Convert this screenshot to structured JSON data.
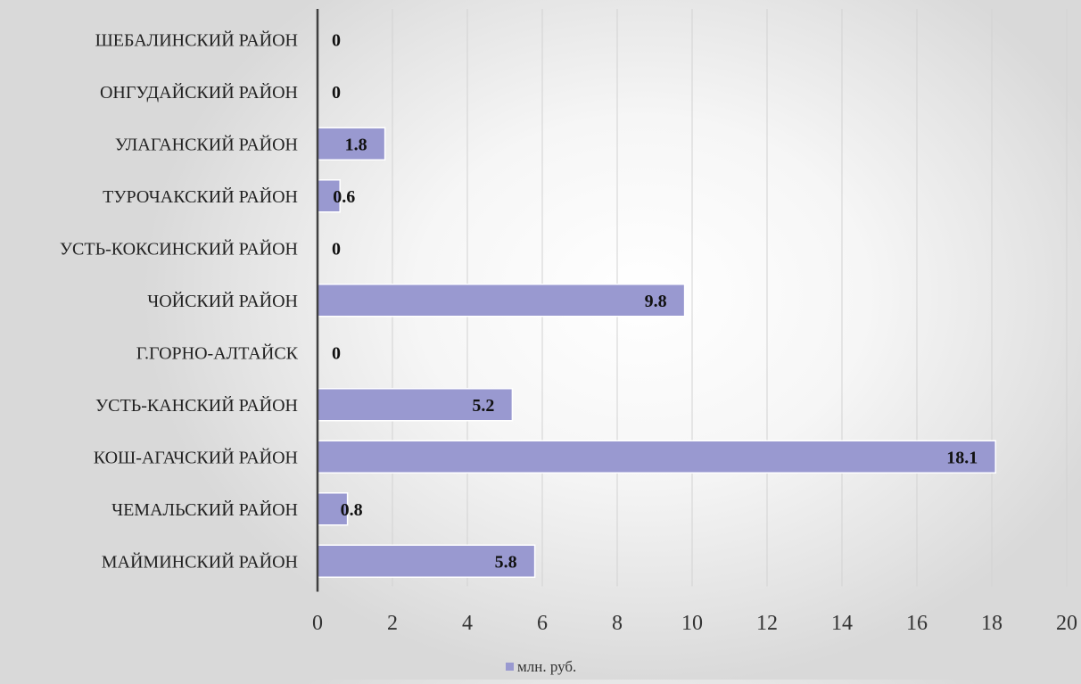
{
  "chart_data": {
    "type": "bar",
    "orientation": "horizontal",
    "categories": [
      "ШЕБАЛИНСКИЙ РАЙОН",
      "ОНГУДАЙСКИЙ РАЙОН",
      "УЛАГАНСКИЙ РАЙОН",
      "ТУРОЧАКСКИЙ РАЙОН",
      "УСТЬ-КОКСИНСКИЙ РАЙОН",
      "ЧОЙСКИЙ РАЙОН",
      "Г.ГОРНО-АЛТАЙСК",
      "УСТЬ-КАНСКИЙ РАЙОН",
      "КОШ-АГАЧСКИЙ РАЙОН",
      "ЧЕМАЛЬСКИЙ РАЙОН",
      "МАЙМИНСКИЙ РАЙОН"
    ],
    "series": [
      {
        "name": "млн. руб.",
        "values": [
          0,
          0,
          1.8,
          0.6,
          0,
          9.8,
          0,
          5.2,
          18.1,
          0.8,
          5.8
        ],
        "labels": [
          "0",
          "0",
          "1.8",
          "0.6",
          "0",
          "9.8",
          "0",
          "5.2",
          "18.1",
          "0.8",
          "5.8"
        ]
      }
    ],
    "xlim": [
      0,
      20
    ],
    "xticks": [
      "0",
      "2",
      "4",
      "6",
      "8",
      "10",
      "12",
      "14",
      "16",
      "18",
      "20"
    ],
    "grid": true,
    "legend_position": "bottom",
    "bar_color": "#9999d0",
    "bar_edge_color": "#ffffff",
    "axis_color": "#404040",
    "grid_color": "#d2d2d2"
  }
}
